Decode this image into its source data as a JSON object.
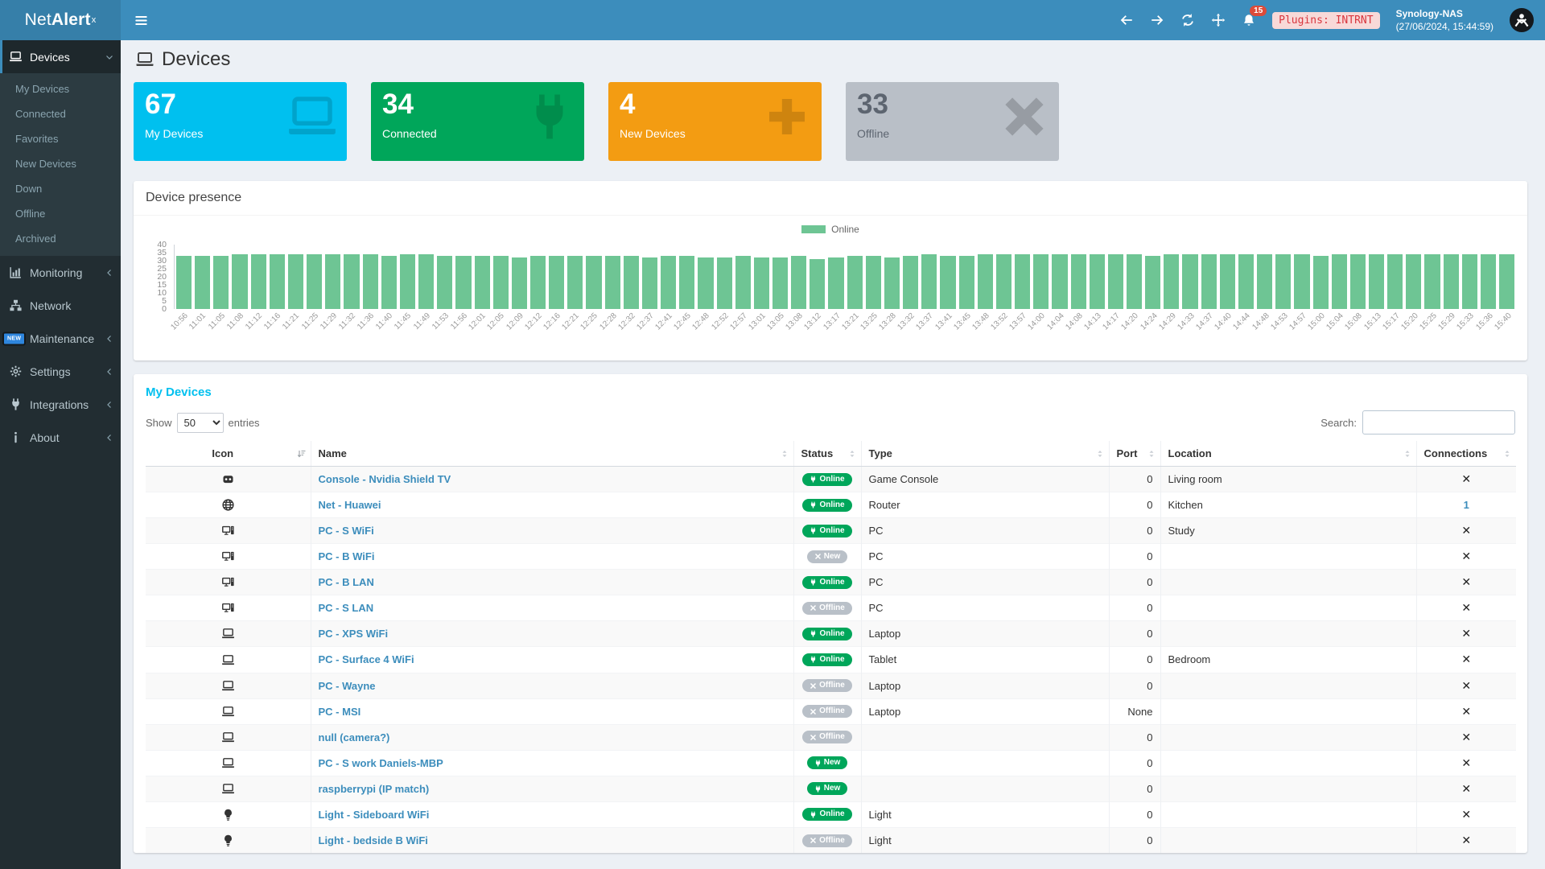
{
  "app": {
    "brand_prefix": "Net",
    "brand_bold": "Alert",
    "brand_sup": "x"
  },
  "topbar": {
    "notification_count": "15",
    "plugins_badge": "Plugins: INTRNT",
    "host_name": "Synology-NAS",
    "host_time": "(27/06/2024, 15:44:59)"
  },
  "sidebar": {
    "devices_label": "Devices",
    "device_submenu": [
      "My Devices",
      "Connected",
      "Favorites",
      "New Devices",
      "Down",
      "Offline",
      "Archived"
    ],
    "sections": [
      {
        "label": "Monitoring",
        "icon": "chart",
        "chevron": true,
        "badge": ""
      },
      {
        "label": "Network",
        "icon": "sitemap",
        "chevron": false,
        "badge": ""
      },
      {
        "label": "Maintenance",
        "icon": "wrench",
        "chevron": true,
        "badge": "NEW"
      },
      {
        "label": "Settings",
        "icon": "gear",
        "chevron": true,
        "badge": ""
      },
      {
        "label": "Integrations",
        "icon": "plug",
        "chevron": true,
        "badge": ""
      },
      {
        "label": "About",
        "icon": "info",
        "chevron": true,
        "badge": ""
      }
    ]
  },
  "page": {
    "title": "Devices"
  },
  "stats": [
    {
      "value": "67",
      "label": "My Devices",
      "color": "#00c0ef",
      "icon": "laptop",
      "muted": false
    },
    {
      "value": "34",
      "label": "Connected",
      "color": "#00a65a",
      "icon": "plug",
      "muted": false
    },
    {
      "value": "4",
      "label": "New Devices",
      "color": "#f39c12",
      "icon": "plus",
      "muted": false
    },
    {
      "value": "33",
      "label": "Offline",
      "color": "#b9bfc7",
      "icon": "times",
      "muted": true
    }
  ],
  "chart_data": {
    "type": "bar",
    "title": "Device presence",
    "legend": [
      "Online"
    ],
    "legend_position": "top",
    "series_color": "#6ec594",
    "grid": false,
    "xlabel": "",
    "ylabel": "",
    "ylim": [
      0,
      40
    ],
    "yticks": [
      40,
      35,
      30,
      25,
      20,
      15,
      10,
      5,
      0
    ],
    "categories": [
      "10:56",
      "11:01",
      "11:05",
      "11:08",
      "11:12",
      "11:16",
      "11:21",
      "11:25",
      "11:29",
      "11:32",
      "11:36",
      "11:40",
      "11:45",
      "11:49",
      "11:53",
      "11:56",
      "12:01",
      "12:05",
      "12:09",
      "12:12",
      "12:16",
      "12:21",
      "12:25",
      "12:28",
      "12:32",
      "12:37",
      "12:41",
      "12:45",
      "12:48",
      "12:52",
      "12:57",
      "13:01",
      "13:05",
      "13:08",
      "13:12",
      "13:17",
      "13:21",
      "13:25",
      "13:28",
      "13:32",
      "13:37",
      "13:41",
      "13:45",
      "13:48",
      "13:52",
      "13:57",
      "14:00",
      "14:04",
      "14:08",
      "14:13",
      "14:17",
      "14:20",
      "14:24",
      "14:29",
      "14:33",
      "14:37",
      "14:40",
      "14:44",
      "14:48",
      "14:53",
      "14:57",
      "15:00",
      "15:04",
      "15:08",
      "15:13",
      "15:17",
      "15:20",
      "15:25",
      "15:29",
      "15:33",
      "15:36",
      "15:40"
    ],
    "values": [
      33,
      33,
      33,
      34,
      34,
      34,
      34,
      34,
      34,
      34,
      34,
      33,
      34,
      34,
      33,
      33,
      33,
      33,
      32,
      33,
      33,
      33,
      33,
      33,
      33,
      32,
      33,
      33,
      32,
      32,
      33,
      32,
      32,
      33,
      31,
      32,
      33,
      33,
      32,
      33,
      34,
      33,
      33,
      34,
      34,
      34,
      34,
      34,
      34,
      34,
      34,
      34,
      33,
      34,
      34,
      34,
      34,
      34,
      34,
      34,
      34,
      33,
      34,
      34,
      34,
      34,
      34,
      34,
      34,
      34,
      34,
      34
    ]
  },
  "devices_table": {
    "title": "My Devices",
    "show_label": "Show",
    "entries_label": "entries",
    "page_size": "50",
    "search_label": "Search:",
    "columns": [
      "Icon",
      "Name",
      "Status",
      "Type",
      "Port",
      "Location",
      "Connections"
    ],
    "delete_glyph": "✕",
    "rows": [
      {
        "icon": "gamepad",
        "name": "Console - Nvidia Shield TV",
        "status": "Online",
        "status_variant": "green",
        "status_icon": "plugsm",
        "type": "Game Console",
        "port": "0",
        "location": "Living room",
        "connections": "✕",
        "connections_link": false
      },
      {
        "icon": "globe",
        "name": "Net - Huawei",
        "status": "Online",
        "status_variant": "green",
        "status_icon": "plugsm",
        "type": "Router",
        "port": "0",
        "location": "Kitchen",
        "connections": "1",
        "connections_link": true
      },
      {
        "icon": "desktop",
        "name": "PC - S WiFi",
        "status": "Online",
        "status_variant": "green",
        "status_icon": "plugsm",
        "type": "PC",
        "port": "0",
        "location": "Study",
        "connections": "✕",
        "connections_link": false
      },
      {
        "icon": "desktop",
        "name": "PC - B WiFi",
        "status": "New",
        "status_variant": "gray",
        "status_icon": "xsm",
        "type": "PC",
        "port": "0",
        "location": "",
        "connections": "✕",
        "connections_link": false
      },
      {
        "icon": "desktop",
        "name": "PC - B LAN",
        "status": "Online",
        "status_variant": "green",
        "status_icon": "plugsm",
        "type": "PC",
        "port": "0",
        "location": "",
        "connections": "✕",
        "connections_link": false
      },
      {
        "icon": "desktop",
        "name": "PC - S LAN",
        "status": "Offline",
        "status_variant": "gray",
        "status_icon": "xsm",
        "type": "PC",
        "port": "0",
        "location": "",
        "connections": "✕",
        "connections_link": false
      },
      {
        "icon": "laptop",
        "name": "PC - XPS WiFi",
        "status": "Online",
        "status_variant": "green",
        "status_icon": "plugsm",
        "type": "Laptop",
        "port": "0",
        "location": "",
        "connections": "✕",
        "connections_link": false
      },
      {
        "icon": "laptop",
        "name": "PC - Surface 4 WiFi",
        "status": "Online",
        "status_variant": "green",
        "status_icon": "plugsm",
        "type": "Tablet",
        "port": "0",
        "location": "Bedroom",
        "connections": "✕",
        "connections_link": false
      },
      {
        "icon": "laptop",
        "name": "PC - Wayne",
        "status": "Offline",
        "status_variant": "gray",
        "status_icon": "xsm",
        "type": "Laptop",
        "port": "0",
        "location": "",
        "connections": "✕",
        "connections_link": false
      },
      {
        "icon": "laptop",
        "name": "PC - MSI",
        "status": "Offline",
        "status_variant": "gray",
        "status_icon": "xsm",
        "type": "Laptop",
        "port": "None",
        "location": "",
        "connections": "✕",
        "connections_link": false
      },
      {
        "icon": "laptop",
        "name": "null (camera?)",
        "status": "Offline",
        "status_variant": "gray",
        "status_icon": "xsm",
        "type": "",
        "port": "0",
        "location": "",
        "connections": "✕",
        "connections_link": false
      },
      {
        "icon": "laptop",
        "name": "PC - S work Daniels-MBP",
        "status": "New",
        "status_variant": "green",
        "status_icon": "plugsm",
        "type": "",
        "port": "0",
        "location": "",
        "connections": "✕",
        "connections_link": false
      },
      {
        "icon": "laptop",
        "name": "raspberrypi (IP match)",
        "status": "New",
        "status_variant": "green",
        "status_icon": "plugsm",
        "type": "",
        "port": "0",
        "location": "",
        "connections": "✕",
        "connections_link": false
      },
      {
        "icon": "bulb",
        "name": "Light - Sideboard WiFi",
        "status": "Online",
        "status_variant": "green",
        "status_icon": "plugsm",
        "type": "Light",
        "port": "0",
        "location": "",
        "connections": "✕",
        "connections_link": false
      },
      {
        "icon": "bulb",
        "name": "Light - bedside B WiFi",
        "status": "Offline",
        "status_variant": "gray",
        "status_icon": "xsm",
        "type": "Light",
        "port": "0",
        "location": "",
        "connections": "✕",
        "connections_link": false
      }
    ]
  }
}
